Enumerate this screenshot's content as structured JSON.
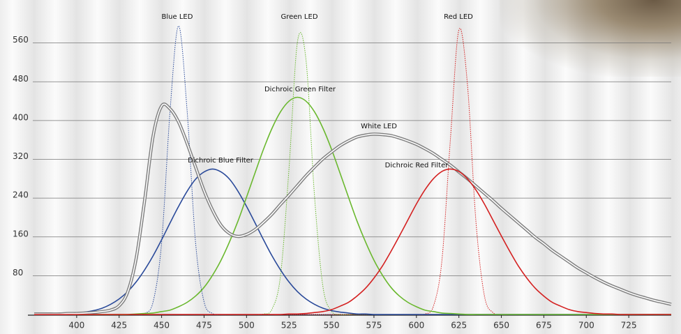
{
  "chart_data": {
    "type": "line",
    "x": [
      375,
      380,
      385,
      390,
      395,
      400,
      405,
      410,
      415,
      420,
      425,
      430,
      435,
      440,
      445,
      450,
      455,
      460,
      465,
      470,
      475,
      480,
      485,
      490,
      495,
      500,
      505,
      510,
      515,
      520,
      525,
      530,
      535,
      540,
      545,
      550,
      555,
      560,
      565,
      570,
      575,
      580,
      585,
      590,
      595,
      600,
      605,
      610,
      615,
      620,
      625,
      630,
      635,
      640,
      645,
      650,
      655,
      660,
      665,
      670,
      675,
      680,
      685,
      690,
      695,
      700,
      705,
      710,
      715,
      720,
      725,
      730,
      735,
      740,
      745,
      750
    ],
    "xlim": [
      375,
      750
    ],
    "xticks": [
      400,
      425,
      450,
      475,
      500,
      525,
      550,
      575,
      600,
      625,
      650,
      675,
      700,
      725
    ],
    "ylim": [
      0,
      640
    ],
    "yticks": [
      80,
      160,
      240,
      320,
      400,
      480,
      560
    ],
    "grid": true,
    "series": [
      {
        "name": "Blue LED",
        "color": "#2a4a9a",
        "line_style": "dotted",
        "values": [
          0,
          0,
          0,
          0,
          0,
          0,
          0,
          0,
          0,
          0,
          0,
          0,
          0,
          2,
          26,
          148,
          421,
          595,
          421,
          148,
          26,
          2,
          0,
          0,
          0,
          0,
          0,
          0,
          0,
          0,
          0,
          0,
          0,
          0,
          0,
          0,
          0,
          0,
          0,
          0,
          0,
          0,
          0,
          0,
          0,
          0,
          0,
          0,
          0,
          0,
          0,
          0,
          0,
          0,
          0,
          0,
          0,
          0,
          0,
          0,
          0,
          0,
          0,
          0,
          0,
          0,
          0,
          0,
          0,
          0,
          0,
          0,
          0,
          0,
          0,
          0
        ]
      },
      {
        "name": "Green LED",
        "color": "#6ab82e",
        "line_style": "dotted",
        "values": [
          0,
          0,
          0,
          0,
          0,
          0,
          0,
          0,
          0,
          0,
          0,
          0,
          0,
          0,
          0,
          0,
          0,
          0,
          0,
          0,
          0,
          0,
          0,
          0,
          0,
          0,
          0,
          1,
          11,
          80,
          301,
          563,
          525,
          245,
          57,
          7,
          0,
          0,
          0,
          0,
          0,
          0,
          0,
          0,
          0,
          0,
          0,
          0,
          0,
          0,
          0,
          0,
          0,
          0,
          0,
          0,
          0,
          0,
          0,
          0,
          0,
          0,
          0,
          0,
          0,
          0,
          0,
          0,
          0,
          0,
          0,
          0,
          0,
          0,
          0,
          0
        ]
      },
      {
        "name": "Red LED",
        "color": "#d42020",
        "line_style": "dotted",
        "values": [
          0,
          0,
          0,
          0,
          0,
          0,
          0,
          0,
          0,
          0,
          0,
          0,
          0,
          0,
          0,
          0,
          0,
          0,
          0,
          0,
          0,
          0,
          0,
          0,
          0,
          0,
          0,
          0,
          0,
          0,
          0,
          0,
          0,
          0,
          0,
          0,
          0,
          0,
          0,
          0,
          0,
          0,
          0,
          0,
          0,
          0,
          1,
          17,
          111,
          361,
          587,
          476,
          193,
          39,
          4,
          0,
          0,
          0,
          0,
          0,
          0,
          0,
          0,
          0,
          0,
          0,
          0,
          0,
          0,
          0,
          0,
          0,
          0,
          0,
          0,
          0
        ]
      },
      {
        "name": "Dichroic Blue Filter",
        "color": "#2a4a9a",
        "line_style": "solid",
        "values": [
          0,
          0,
          0,
          1,
          1,
          3,
          5,
          8,
          13,
          21,
          32,
          47,
          67,
          92,
          121,
          154,
          189,
          223,
          254,
          279,
          294,
          300,
          294,
          279,
          254,
          223,
          189,
          154,
          121,
          92,
          67,
          47,
          32,
          21,
          13,
          8,
          5,
          3,
          1,
          1,
          0,
          0,
          0,
          0,
          0,
          0,
          0,
          0,
          0,
          0,
          0,
          0,
          0,
          0,
          0,
          0,
          0,
          0,
          0,
          0,
          0,
          0,
          0,
          0,
          0,
          0,
          0,
          0,
          0,
          0,
          0,
          0,
          0,
          0,
          0,
          0
        ]
      },
      {
        "name": "Dichroic Green Filter",
        "color": "#6ab82e",
        "line_style": "solid",
        "values": [
          0,
          0,
          0,
          0,
          0,
          0,
          0,
          0,
          0,
          0,
          0,
          0,
          1,
          2,
          3,
          6,
          9,
          16,
          25,
          38,
          56,
          81,
          112,
          150,
          193,
          242,
          292,
          341,
          384,
          418,
          440,
          448,
          440,
          418,
          384,
          341,
          292,
          242,
          193,
          150,
          112,
          81,
          56,
          38,
          25,
          16,
          9,
          6,
          3,
          2,
          1,
          0,
          0,
          0,
          0,
          0,
          0,
          0,
          0,
          0,
          0,
          0,
          0,
          0,
          0,
          0,
          0,
          0,
          0,
          0,
          0,
          0,
          0,
          0,
          0,
          0
        ]
      },
      {
        "name": "White LED",
        "color": "#808080",
        "line_style": "double",
        "values": [
          1,
          1,
          1,
          1,
          2,
          2,
          3,
          4,
          6,
          9,
          18,
          46,
          115,
          235,
          368,
          430,
          424,
          397,
          353,
          304,
          255,
          215,
          184,
          167,
          161,
          165,
          175,
          190,
          207,
          227,
          246,
          266,
          286,
          304,
          321,
          335,
          348,
          358,
          366,
          370,
          372,
          371,
          369,
          364,
          358,
          351,
          342,
          332,
          320,
          308,
          294,
          280,
          265,
          250,
          235,
          219,
          204,
          189,
          174,
          159,
          146,
          132,
          120,
          108,
          96,
          86,
          76,
          67,
          59,
          52,
          45,
          39,
          34,
          29,
          25,
          21
        ]
      },
      {
        "name": "Dichroic Red Filter",
        "color": "#d42020",
        "line_style": "solid",
        "values": [
          0,
          0,
          0,
          0,
          0,
          0,
          0,
          0,
          0,
          0,
          0,
          0,
          0,
          0,
          0,
          0,
          0,
          0,
          0,
          0,
          0,
          0,
          0,
          0,
          0,
          0,
          0,
          0,
          0,
          0,
          1,
          1,
          2,
          4,
          6,
          10,
          17,
          25,
          38,
          54,
          75,
          100,
          130,
          162,
          195,
          228,
          257,
          280,
          295,
          300,
          295,
          280,
          257,
          228,
          195,
          162,
          130,
          100,
          75,
          54,
          38,
          25,
          17,
          10,
          6,
          4,
          2,
          1,
          1,
          0,
          0,
          0,
          0,
          0,
          0,
          0
        ]
      }
    ]
  }
}
